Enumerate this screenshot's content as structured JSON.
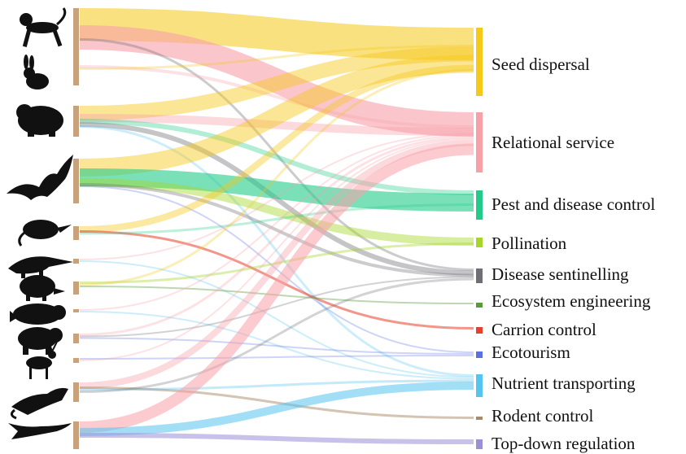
{
  "animals": [
    {
      "icon": "monkey-icon"
    },
    {
      "icon": "rabbit-icon"
    },
    {
      "icon": "wombat-icon"
    },
    {
      "icon": "bat-icon"
    },
    {
      "icon": "shrew-icon"
    },
    {
      "icon": "anteater-icon"
    },
    {
      "icon": "armadillo-icon"
    },
    {
      "icon": "manatee-icon"
    },
    {
      "icon": "bear-icon"
    },
    {
      "icon": "deer-icon"
    },
    {
      "icon": "cat-icon"
    },
    {
      "icon": "whale-icon"
    }
  ],
  "services": [
    {
      "label": "Seed dispersal",
      "color": "#f6c817"
    },
    {
      "label": "Relational service",
      "color": "#f7a0a8"
    },
    {
      "label": "Pest and disease control",
      "color": "#22cc88"
    },
    {
      "label": "Pollination",
      "color": "#a6d62a"
    },
    {
      "label": "Disease sentinelling",
      "color": "#6e6e74"
    },
    {
      "label": "Ecosystem engineering",
      "color": "#5a9a3a"
    },
    {
      "label": "Carrion control",
      "color": "#e8402a"
    },
    {
      "label": "Ecotourism",
      "color": "#5a6fe0"
    },
    {
      "label": "Nutrient transporting",
      "color": "#55c4f0"
    },
    {
      "label": "Rodent control",
      "color": "#a88a6a"
    },
    {
      "label": "Top-down regulation",
      "color": "#9a90d8"
    }
  ],
  "colors": {
    "source_bar": "#c8a27a"
  }
}
